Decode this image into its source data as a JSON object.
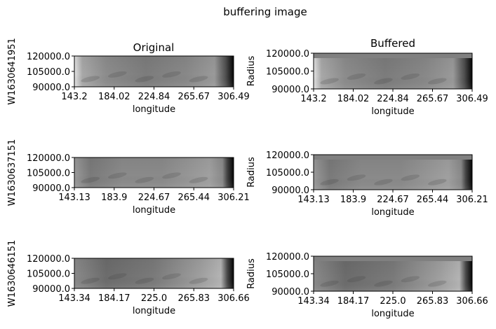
{
  "suptitle": "buffering image",
  "columns": [
    "Original",
    "Buffered"
  ],
  "chart_data": [
    {
      "type": "heatmap",
      "panel": "original-1",
      "row_label": "W1630641951",
      "title": "Original",
      "xlabel": "longitude",
      "ylabel": "",
      "xticks": [
        "143.2",
        "184.02",
        "224.84",
        "265.67",
        "306.49"
      ],
      "yticks": [
        "120000.0",
        "105000.0",
        "90000.0"
      ],
      "xlim": [
        143.2,
        306.49
      ],
      "ylim": [
        90000,
        120000
      ],
      "colormap": "gray",
      "buffered": false
    },
    {
      "type": "heatmap",
      "panel": "buffered-1",
      "title": "Buffered",
      "xlabel": "longitude",
      "ylabel": "Radius",
      "xticks": [
        "143.2",
        "184.02",
        "224.84",
        "265.67",
        "306.49"
      ],
      "yticks": [
        "120000.0",
        "105000.0",
        "90000.0"
      ],
      "xlim": [
        143.2,
        306.49
      ],
      "ylim": [
        90000,
        120000
      ],
      "colormap": "gray",
      "buffered": true
    },
    {
      "type": "heatmap",
      "panel": "original-2",
      "row_label": "W1630637151",
      "title": "",
      "xlabel": "longitude",
      "ylabel": "",
      "xticks": [
        "143.13",
        "183.9",
        "224.67",
        "265.44",
        "306.21"
      ],
      "yticks": [
        "120000.0",
        "105000.0",
        "90000.0"
      ],
      "xlim": [
        143.13,
        306.21
      ],
      "ylim": [
        90000,
        120000
      ],
      "colormap": "gray",
      "buffered": false
    },
    {
      "type": "heatmap",
      "panel": "buffered-2",
      "title": "",
      "xlabel": "longitude",
      "ylabel": "Radius",
      "xticks": [
        "143.13",
        "183.9",
        "224.67",
        "265.44",
        "306.21"
      ],
      "yticks": [
        "120000.0",
        "105000.0",
        "90000.0"
      ],
      "xlim": [
        143.13,
        306.21
      ],
      "ylim": [
        90000,
        120000
      ],
      "colormap": "gray",
      "buffered": true
    },
    {
      "type": "heatmap",
      "panel": "original-3",
      "row_label": "W1630646151",
      "title": "",
      "xlabel": "longitude",
      "ylabel": "",
      "xticks": [
        "143.34",
        "184.17",
        "225.0",
        "265.83",
        "306.66"
      ],
      "yticks": [
        "120000.0",
        "105000.0",
        "90000.0"
      ],
      "xlim": [
        143.34,
        306.66
      ],
      "ylim": [
        90000,
        120000
      ],
      "colormap": "gray",
      "buffered": false
    },
    {
      "type": "heatmap",
      "panel": "buffered-3",
      "title": "",
      "xlabel": "longitude",
      "ylabel": "Radius",
      "xticks": [
        "143.34",
        "184.17",
        "225.0",
        "265.83",
        "306.66"
      ],
      "yticks": [
        "120000.0",
        "105000.0",
        "90000.0"
      ],
      "xlim": [
        143.34,
        306.66
      ],
      "ylim": [
        90000,
        120000
      ],
      "colormap": "gray",
      "buffered": true
    }
  ],
  "colors": {
    "buffer": "#808080",
    "edge_dark": "#0a0a0a",
    "edge_light": "#d8d8d8"
  }
}
